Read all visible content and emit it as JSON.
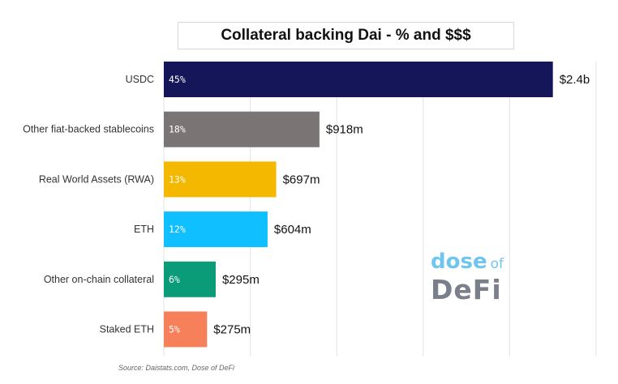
{
  "chart_data": {
    "type": "bar",
    "orientation": "horizontal",
    "title": "Collateral backing Dai - % and $$$",
    "categories": [
      "USDC",
      "Other fiat-backed stablecoins",
      "Real World Assets (RWA)",
      "ETH",
      "Other on-chain collateral",
      "Staked ETH"
    ],
    "values": [
      45,
      18,
      13,
      12,
      6,
      5
    ],
    "value_labels": [
      "45%",
      "18%",
      "13%",
      "12%",
      "6%",
      "5%"
    ],
    "dollar_labels": [
      "$2.4b",
      "$918m",
      "$697m",
      "$604m",
      "$295m",
      "$275m"
    ],
    "colors": [
      "#15155a",
      "#7a7474",
      "#f4b800",
      "#10bfff",
      "#0a9c78",
      "#f58059"
    ],
    "xlim": [
      0,
      50
    ],
    "grid": true,
    "source": "Source: Daistats.com, Dose of DeFi"
  },
  "watermark": {
    "top": "dose",
    "of": "of",
    "bottom": "DeFi"
  }
}
